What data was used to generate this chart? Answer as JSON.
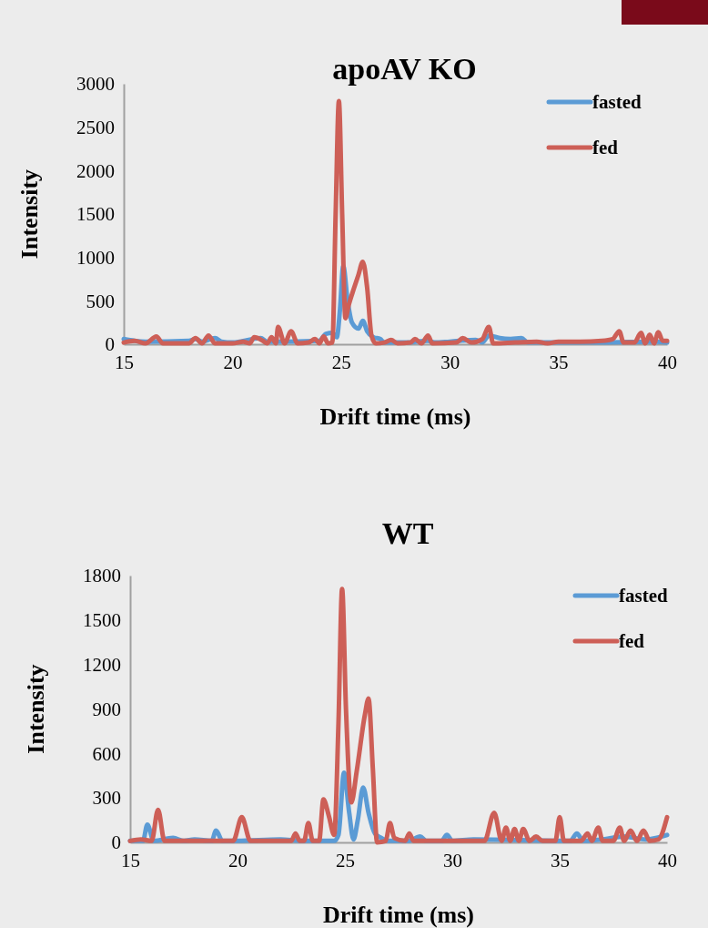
{
  "chart_data": [
    {
      "type": "line",
      "title": "apoAV KO",
      "xlabel": "Drift time (ms)",
      "ylabel": "Intensity",
      "xlim": [
        15,
        40
      ],
      "xticks": [
        15,
        20,
        25,
        30,
        35,
        40
      ],
      "ylim": [
        0,
        3000
      ],
      "yticks": [
        0,
        500,
        1000,
        1500,
        2000,
        2500,
        3000
      ],
      "grid": false,
      "legend": "top right",
      "marker": "none",
      "line_style": "solid",
      "series": [
        {
          "name": "fasted",
          "color": "#5b9bd5",
          "x": [
            15,
            15.5,
            16,
            18,
            18.3,
            18.6,
            19,
            19.2,
            19.5,
            20,
            21.3,
            21.6,
            22,
            24,
            24.3,
            24.6,
            24.8,
            24.95,
            25.1,
            25.3,
            25.5,
            25.8,
            26,
            26.2,
            26.5,
            26.8,
            27,
            28,
            29,
            29.3,
            30,
            31.2,
            31.5,
            31.8,
            32.3,
            32.8,
            33.3,
            33.6,
            35,
            37,
            39.5,
            40
          ],
          "values": [
            60,
            40,
            30,
            40,
            60,
            30,
            60,
            70,
            30,
            20,
            70,
            30,
            30,
            40,
            120,
            130,
            80,
            400,
            900,
            500,
            250,
            180,
            270,
            150,
            80,
            60,
            20,
            20,
            40,
            20,
            30,
            50,
            20,
            100,
            70,
            60,
            70,
            20,
            20,
            20,
            30,
            20
          ]
        },
        {
          "name": "fed",
          "color": "#cd5f57",
          "x": [
            15,
            15.5,
            16,
            16.5,
            16.8,
            18,
            18.3,
            18.6,
            18.9,
            19.2,
            20,
            20.5,
            20.8,
            21,
            21.4,
            21.6,
            21.8,
            22,
            22.1,
            22.4,
            22.7,
            23,
            23.5,
            23.8,
            24,
            24.2,
            24.4,
            24.6,
            24.75,
            24.9,
            25.05,
            25.2,
            25.35,
            25.6,
            25.8,
            26,
            26.2,
            26.4,
            26.6,
            27,
            27.3,
            27.6,
            28.2,
            28.4,
            28.7,
            29,
            29.2,
            30.3,
            30.6,
            31,
            31.5,
            31.8,
            32,
            33,
            34,
            34.5,
            35,
            36,
            37,
            37.5,
            37.8,
            38,
            38.5,
            38.8,
            39,
            39.2,
            39.4,
            39.6,
            39.8,
            40
          ],
          "values": [
            20,
            40,
            10,
            90,
            10,
            10,
            70,
            10,
            100,
            10,
            10,
            30,
            10,
            80,
            40,
            10,
            80,
            10,
            200,
            10,
            150,
            10,
            20,
            60,
            10,
            90,
            10,
            20,
            1500,
            2800,
            1500,
            300,
            450,
            650,
            800,
            950,
            650,
            100,
            10,
            20,
            50,
            10,
            20,
            60,
            10,
            100,
            10,
            20,
            70,
            20,
            60,
            200,
            10,
            20,
            30,
            10,
            30,
            30,
            40,
            60,
            150,
            20,
            20,
            130,
            10,
            110,
            10,
            140,
            40,
            40
          ]
        }
      ]
    },
    {
      "type": "line",
      "title": "WT",
      "xlabel": "Drift time (ms)",
      "ylabel": "Intensity",
      "xlim": [
        15,
        40
      ],
      "xticks": [
        15,
        20,
        25,
        30,
        35,
        40
      ],
      "ylim": [
        0,
        1800
      ],
      "yticks": [
        0,
        300,
        600,
        900,
        1200,
        1500,
        1800
      ],
      "grid": false,
      "legend": "top right",
      "marker": "none",
      "line_style": "solid",
      "series": [
        {
          "name": "fasted",
          "color": "#5b9bd5",
          "x": [
            15,
            15.6,
            15.8,
            16.1,
            17,
            17.5,
            18,
            18.8,
            19,
            19.3,
            20,
            22,
            23,
            24,
            24.5,
            24.7,
            24.96,
            25.2,
            25.4,
            25.6,
            25.85,
            26.1,
            26.4,
            26.7,
            27,
            28,
            28.5,
            28.8,
            29.5,
            29.75,
            30,
            31,
            35.5,
            35.8,
            36.1,
            37,
            38,
            39,
            40
          ],
          "values": [
            10,
            10,
            120,
            10,
            30,
            10,
            20,
            10,
            80,
            10,
            10,
            20,
            10,
            10,
            10,
            50,
            470,
            200,
            20,
            150,
            370,
            200,
            60,
            30,
            10,
            10,
            40,
            10,
            10,
            50,
            10,
            20,
            10,
            60,
            10,
            20,
            40,
            20,
            50
          ]
        },
        {
          "name": "fed",
          "color": "#cd5f57",
          "x": [
            15,
            15.5,
            16,
            16.3,
            16.6,
            17,
            19.8,
            20.2,
            20.6,
            21,
            22.5,
            22.7,
            22.9,
            23.1,
            23.3,
            23.5,
            23.8,
            24,
            24.25,
            24.5,
            24.7,
            24.87,
            25.05,
            25.3,
            25.55,
            25.93,
            26.1,
            26.3,
            26.5,
            26.9,
            27.1,
            27.3,
            27.8,
            28,
            28.2,
            28.5,
            31.5,
            31.95,
            32.3,
            32.5,
            32.7,
            32.9,
            33.1,
            33.3,
            33.6,
            33.9,
            34.2,
            34.8,
            35,
            35.2,
            36,
            36.3,
            36.5,
            36.8,
            37,
            37.5,
            37.8,
            38,
            38.3,
            38.6,
            38.9,
            39.2,
            39.6,
            40
          ],
          "values": [
            10,
            20,
            10,
            220,
            10,
            10,
            10,
            170,
            10,
            10,
            10,
            60,
            10,
            10,
            130,
            10,
            10,
            290,
            180,
            50,
            800,
            1710,
            900,
            270,
            480,
            860,
            970,
            500,
            0,
            10,
            130,
            30,
            10,
            60,
            10,
            10,
            10,
            200,
            10,
            100,
            10,
            90,
            10,
            90,
            10,
            40,
            10,
            10,
            170,
            10,
            10,
            60,
            10,
            100,
            10,
            10,
            100,
            10,
            80,
            10,
            80,
            10,
            20,
            170
          ]
        }
      ]
    }
  ]
}
